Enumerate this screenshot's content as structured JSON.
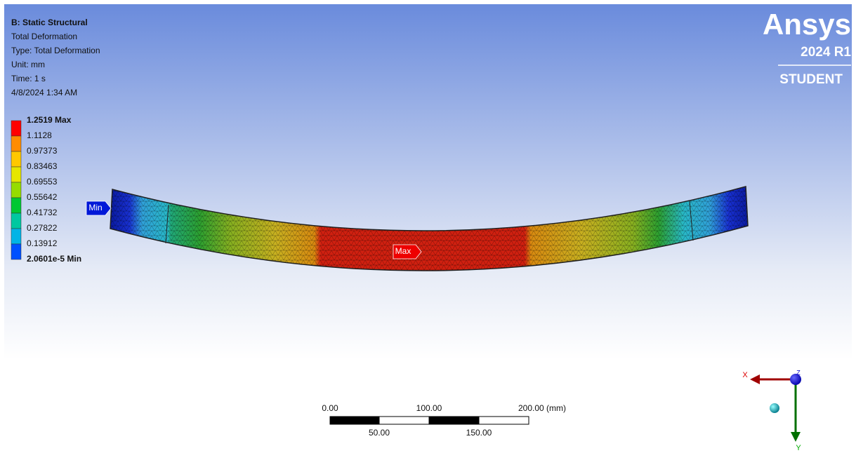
{
  "header": {
    "lines": [
      "B: Static Structural",
      "Total Deformation",
      "Type: Total Deformation",
      "Unit: mm",
      "Time: 1 s",
      "4/8/2024 1:34 AM"
    ]
  },
  "legend": {
    "labels": [
      "1.2519 Max",
      "1.1128",
      "0.97373",
      "0.83463",
      "0.69553",
      "0.55642",
      "0.41732",
      "0.27822",
      "0.13912",
      "2.0601e-5 Min"
    ],
    "band_colors": [
      "#ff0000",
      "#ff8c00",
      "#ffc800",
      "#e6e600",
      "#96dc00",
      "#00c832",
      "#00c8a0",
      "#00b4e6",
      "#0050ff"
    ]
  },
  "logo": {
    "brand": "Ansys",
    "version": "2024 R1",
    "edition": "STUDENT"
  },
  "probes": {
    "min": "Min",
    "max": "Max"
  },
  "scale_bar": {
    "top": [
      "0.00",
      "100.00",
      "200.00 (mm)"
    ],
    "bottom": [
      "50.00",
      "150.00"
    ]
  },
  "triad": {
    "x": "X",
    "y": "Y",
    "z": "Z"
  }
}
